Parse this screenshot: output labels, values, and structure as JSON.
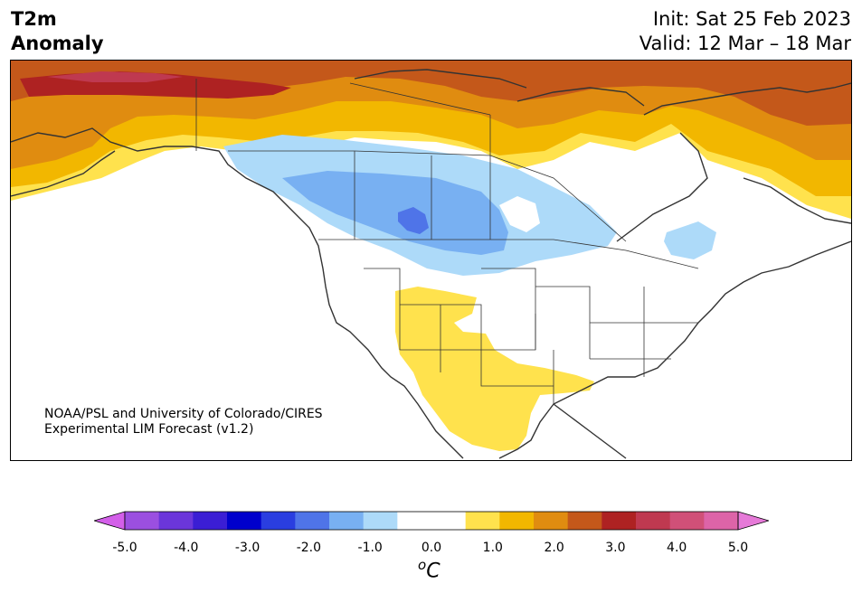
{
  "header": {
    "title_line1": "T2m",
    "title_line2": "Anomaly",
    "init": "Init: Sat 25 Feb 2023",
    "valid": "Valid: 12 Mar – 18 Mar"
  },
  "credit": {
    "line1": "NOAA/PSL and University of Colorado/CIRES",
    "line2": "Experimental LIM Forecast (v1.2)"
  },
  "colorbar": {
    "colors": [
      "#d35fe9",
      "#9b4fe0",
      "#6b36da",
      "#3b1ed4",
      "#0000cc",
      "#2a3ee0",
      "#4f74e8",
      "#78b0f2",
      "#addaf9",
      "#ffffff",
      "#ffffff",
      "#ffe24d",
      "#f2b700",
      "#e08c10",
      "#c4581a",
      "#ae2222",
      "#bf3950",
      "#d05078",
      "#dd64a8",
      "#e67ad8"
    ],
    "ticks": [
      "-5.0",
      "-4.0",
      "-3.0",
      "-2.0",
      "-1.0",
      "0.0",
      "1.0",
      "2.0",
      "3.0",
      "4.0",
      "5.0"
    ],
    "units_base": "C",
    "units_sup": "o"
  },
  "map": {
    "ocean_color": "#ffffff",
    "coast_color": "#333333"
  }
}
